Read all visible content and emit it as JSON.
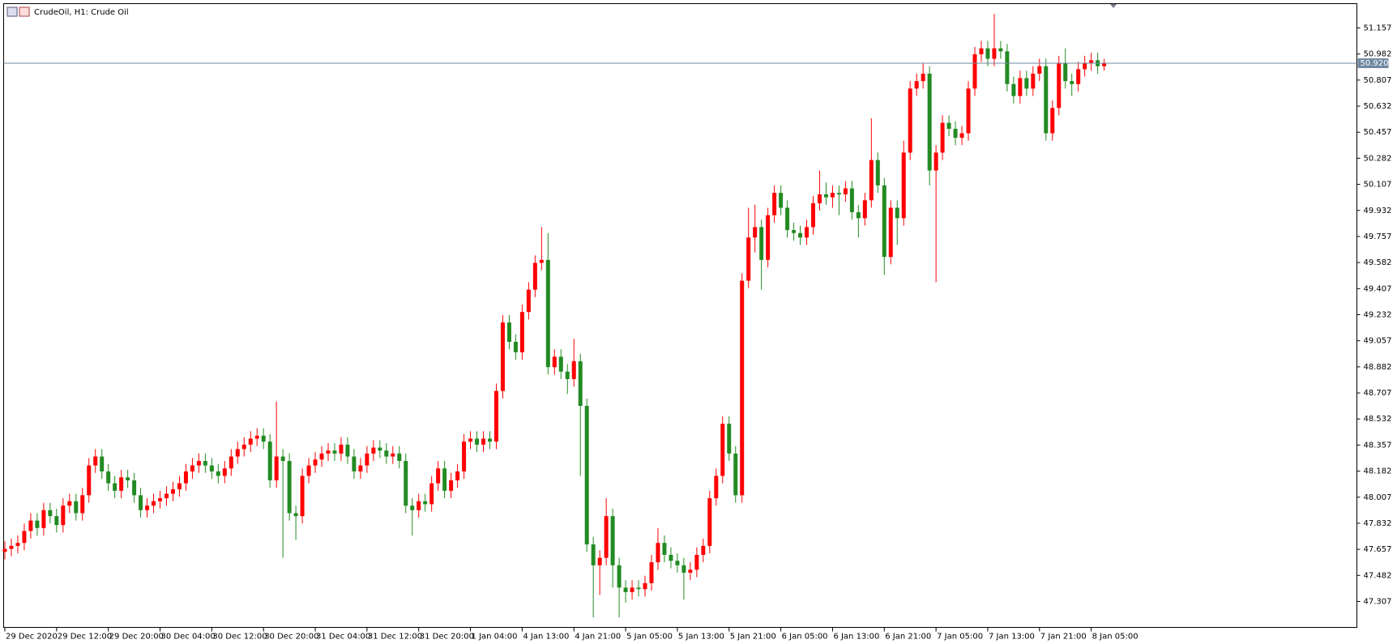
{
  "chart_data": {
    "type": "candlestick",
    "title": "CrudeOil, H1:  Crude Oil",
    "bull_color": "#ff0000",
    "bear_color": "#228b22",
    "ylim": [
      47.133,
      51.32
    ],
    "yticks": [
      51.157,
      50.982,
      50.807,
      50.632,
      50.457,
      50.282,
      50.107,
      49.932,
      49.757,
      49.582,
      49.407,
      49.232,
      49.057,
      48.882,
      48.707,
      48.532,
      48.357,
      48.182,
      48.007,
      47.832,
      47.657,
      47.482,
      47.307
    ],
    "xticks": [
      {
        "value": 0,
        "label": "29 Dec 2020"
      },
      {
        "value": 8,
        "label": "29 Dec 12:00"
      },
      {
        "value": 16,
        "label": "29 Dec 20:00"
      },
      {
        "value": 24,
        "label": "30 Dec 04:00"
      },
      {
        "value": 32,
        "label": "30 Dec 12:00"
      },
      {
        "value": 40,
        "label": "30 Dec 20:00"
      },
      {
        "value": 48,
        "label": "31 Dec 04:00"
      },
      {
        "value": 56,
        "label": "31 Dec 12:00"
      },
      {
        "value": 64,
        "label": "31 Dec 20:00"
      },
      {
        "value": 72,
        "label": "1 Jan 04:00"
      },
      {
        "value": 80,
        "label": "4 Jan 13:00"
      },
      {
        "value": 88,
        "label": "4 Jan 21:00"
      },
      {
        "value": 96,
        "label": "5 Jan 05:00"
      },
      {
        "value": 104,
        "label": "5 Jan 13:00"
      },
      {
        "value": 112,
        "label": "5 Jan 21:00"
      },
      {
        "value": 120,
        "label": "6 Jan 05:00"
      },
      {
        "value": 128,
        "label": "6 Jan 13:00"
      },
      {
        "value": 136,
        "label": "6 Jan 21:00"
      },
      {
        "value": 144,
        "label": "7 Jan 05:00"
      },
      {
        "value": 152,
        "label": "7 Jan 13:00"
      },
      {
        "value": 160,
        "label": "7 Jan 21:00"
      },
      {
        "value": 168,
        "label": "8 Jan 05:00"
      }
    ],
    "last_price": {
      "value": 50.92,
      "label": "50.920"
    },
    "open": [
      47.64,
      47.66,
      47.68,
      47.7,
      47.78,
      47.85,
      47.8,
      47.92,
      47.88,
      47.82,
      47.95,
      47.98,
      47.9,
      48.02,
      48.22,
      48.28,
      48.18,
      48.1,
      48.05,
      48.14,
      48.12,
      48.02,
      47.92,
      47.95,
      47.98,
      48.0,
      48.03,
      48.06,
      48.1,
      48.18,
      48.22,
      48.25,
      48.22,
      48.18,
      48.15,
      48.2,
      48.28,
      48.33,
      48.36,
      48.4,
      48.42,
      48.38,
      48.12,
      48.28,
      48.25,
      47.9,
      47.88,
      48.15,
      48.22,
      48.26,
      48.3,
      48.32,
      48.3,
      48.36,
      48.28,
      48.18,
      48.22,
      48.3,
      48.34,
      48.32,
      48.28,
      48.3,
      48.25,
      47.95,
      47.92,
      47.98,
      47.96,
      48.1,
      48.2,
      48.05,
      48.12,
      48.18,
      48.38,
      48.4,
      48.36,
      48.4,
      48.38,
      48.72,
      49.18,
      49.05,
      48.98,
      49.25,
      49.4,
      49.58,
      49.6,
      48.88,
      48.95,
      48.85,
      48.8,
      48.92,
      48.62,
      47.69,
      47.55,
      47.6,
      47.88,
      47.55,
      47.4,
      47.37,
      47.4,
      47.39,
      47.43,
      47.57,
      47.7,
      47.62,
      47.58,
      47.55,
      47.5,
      47.52,
      47.62,
      47.68,
      48.0,
      48.15,
      48.5,
      48.3,
      48.02,
      49.46,
      49.75,
      49.82,
      49.6,
      49.9,
      50.05,
      49.95,
      49.8,
      49.78,
      49.75,
      49.82,
      49.98,
      50.04,
      50.02,
      50.05,
      50.04,
      50.08,
      49.92,
      49.88,
      50.0,
      50.27,
      50.1,
      49.62,
      49.95,
      49.88,
      50.32,
      50.75,
      50.8,
      50.85,
      50.2,
      50.32,
      50.52,
      50.48,
      50.42,
      50.45,
      50.75,
      50.98,
      51.02,
      50.95,
      51.02,
      51.0,
      50.78,
      50.7,
      50.82,
      50.75,
      50.85,
      50.9,
      50.45,
      50.62,
      50.92,
      50.8,
      50.78,
      50.88,
      50.92,
      50.94,
      50.9
    ],
    "high": [
      47.71,
      47.73,
      47.75,
      47.83,
      47.9,
      47.9,
      47.97,
      47.97,
      47.93,
      48.0,
      48.03,
      48.03,
      48.07,
      48.27,
      48.33,
      48.33,
      48.23,
      48.15,
      48.19,
      48.19,
      48.17,
      48.07,
      48.0,
      48.03,
      48.05,
      48.08,
      48.11,
      48.15,
      48.23,
      48.27,
      48.3,
      48.3,
      48.27,
      48.23,
      48.25,
      48.33,
      48.38,
      48.41,
      48.45,
      48.47,
      48.47,
      48.43,
      48.65,
      48.33,
      48.3,
      47.95,
      48.2,
      48.27,
      48.31,
      48.35,
      48.37,
      48.37,
      48.41,
      48.41,
      48.33,
      48.27,
      48.35,
      48.39,
      48.39,
      48.37,
      48.35,
      48.35,
      48.3,
      48.0,
      48.03,
      48.03,
      48.15,
      48.25,
      48.25,
      48.17,
      48.23,
      48.43,
      48.45,
      48.45,
      48.45,
      48.45,
      48.77,
      49.23,
      49.23,
      49.1,
      49.3,
      49.45,
      49.63,
      49.82,
      49.78,
      49.0,
      49.0,
      48.9,
      49.07,
      48.97,
      48.67,
      47.74,
      47.65,
      48.0,
      47.93,
      47.6,
      47.45,
      47.45,
      47.45,
      47.48,
      47.62,
      47.8,
      47.75,
      47.67,
      47.63,
      47.6,
      47.57,
      47.67,
      47.73,
      48.05,
      48.2,
      48.55,
      48.55,
      48.35,
      49.51,
      49.95,
      49.97,
      49.87,
      49.95,
      50.1,
      50.1,
      50.0,
      49.85,
      49.83,
      49.87,
      50.03,
      50.2,
      50.12,
      50.1,
      50.1,
      50.13,
      50.13,
      49.97,
      50.05,
      50.55,
      50.32,
      50.15,
      50.0,
      50.0,
      50.4,
      50.8,
      50.85,
      50.92,
      50.9,
      50.37,
      50.57,
      50.57,
      50.53,
      50.5,
      50.8,
      51.03,
      51.07,
      51.07,
      51.25,
      51.07,
      51.05,
      50.83,
      50.87,
      50.87,
      50.9,
      50.95,
      50.95,
      50.67,
      50.97,
      51.02,
      50.85,
      50.93,
      50.97,
      50.99,
      50.99,
      50.95
    ],
    "low": [
      47.59,
      47.61,
      47.63,
      47.65,
      47.73,
      47.75,
      47.75,
      47.83,
      47.77,
      47.77,
      47.9,
      47.85,
      47.85,
      47.97,
      48.17,
      48.13,
      48.05,
      48.0,
      48.0,
      48.07,
      47.97,
      47.87,
      47.87,
      47.9,
      47.93,
      47.95,
      47.98,
      48.01,
      48.05,
      48.13,
      48.17,
      48.17,
      48.13,
      48.1,
      48.1,
      48.15,
      48.23,
      48.28,
      48.31,
      48.35,
      48.33,
      48.07,
      48.07,
      47.6,
      47.85,
      47.72,
      47.83,
      48.1,
      48.17,
      48.21,
      48.25,
      48.25,
      48.25,
      48.23,
      48.13,
      48.13,
      48.17,
      48.25,
      48.27,
      48.23,
      48.23,
      48.2,
      47.9,
      47.75,
      47.87,
      47.91,
      47.91,
      48.05,
      48.0,
      48.0,
      48.07,
      48.13,
      48.33,
      48.31,
      48.31,
      48.33,
      48.33,
      48.67,
      49.0,
      48.93,
      48.93,
      49.2,
      49.35,
      49.53,
      48.83,
      48.83,
      48.8,
      48.7,
      48.75,
      48.15,
      47.64,
      47.2,
      47.35,
      47.55,
      47.4,
      47.2,
      47.3,
      47.32,
      47.34,
      47.34,
      47.38,
      47.52,
      47.57,
      47.53,
      47.5,
      47.32,
      47.45,
      47.47,
      47.57,
      47.63,
      47.95,
      48.1,
      48.25,
      47.97,
      47.97,
      49.41,
      49.65,
      49.4,
      49.55,
      49.85,
      49.9,
      49.75,
      49.73,
      49.7,
      49.7,
      49.77,
      49.93,
      49.97,
      49.95,
      49.9,
      49.99,
      49.87,
      49.75,
      49.83,
      49.95,
      50.05,
      49.5,
      49.57,
      49.7,
      49.83,
      50.27,
      50.7,
      50.75,
      50.1,
      49.45,
      50.27,
      50.43,
      50.37,
      50.37,
      50.4,
      50.7,
      50.93,
      50.9,
      50.9,
      50.95,
      50.73,
      50.65,
      50.65,
      50.7,
      50.7,
      50.8,
      50.4,
      50.4,
      50.57,
      50.75,
      50.7,
      50.73,
      50.83,
      50.87,
      50.85,
      50.87
    ],
    "close": [
      47.66,
      47.68,
      47.7,
      47.78,
      47.85,
      47.8,
      47.92,
      47.88,
      47.82,
      47.95,
      47.98,
      47.9,
      48.02,
      48.22,
      48.28,
      48.18,
      48.1,
      48.05,
      48.14,
      48.12,
      48.02,
      47.92,
      47.95,
      47.98,
      48.0,
      48.03,
      48.06,
      48.1,
      48.18,
      48.22,
      48.25,
      48.22,
      48.18,
      48.15,
      48.2,
      48.28,
      48.33,
      48.36,
      48.4,
      48.42,
      48.38,
      48.12,
      48.28,
      48.25,
      47.9,
      47.88,
      48.15,
      48.22,
      48.26,
      48.3,
      48.32,
      48.3,
      48.36,
      48.28,
      48.18,
      48.22,
      48.3,
      48.34,
      48.32,
      48.28,
      48.3,
      48.25,
      47.95,
      47.92,
      47.98,
      47.96,
      48.1,
      48.2,
      48.05,
      48.12,
      48.18,
      48.38,
      48.4,
      48.36,
      48.4,
      48.38,
      48.72,
      49.18,
      49.05,
      48.98,
      49.25,
      49.4,
      49.58,
      49.6,
      48.88,
      48.95,
      48.85,
      48.8,
      48.92,
      48.62,
      47.69,
      47.55,
      47.6,
      47.88,
      47.55,
      47.4,
      47.37,
      47.4,
      47.39,
      47.43,
      47.57,
      47.7,
      47.62,
      47.58,
      47.55,
      47.5,
      47.52,
      47.62,
      47.68,
      48.0,
      48.15,
      48.5,
      48.3,
      48.02,
      49.46,
      49.75,
      49.82,
      49.6,
      49.9,
      50.05,
      49.95,
      49.8,
      49.78,
      49.75,
      49.82,
      49.98,
      50.04,
      50.02,
      50.05,
      50.04,
      50.08,
      49.92,
      49.88,
      50.0,
      50.27,
      50.1,
      49.62,
      49.95,
      49.88,
      50.32,
      50.75,
      50.8,
      50.85,
      50.2,
      50.32,
      50.52,
      50.48,
      50.42,
      50.45,
      50.75,
      50.98,
      51.02,
      50.95,
      51.02,
      51.0,
      50.78,
      50.7,
      50.82,
      50.75,
      50.85,
      50.9,
      50.45,
      50.62,
      50.92,
      50.8,
      50.78,
      50.88,
      50.92,
      50.94,
      50.9,
      50.92
    ]
  }
}
